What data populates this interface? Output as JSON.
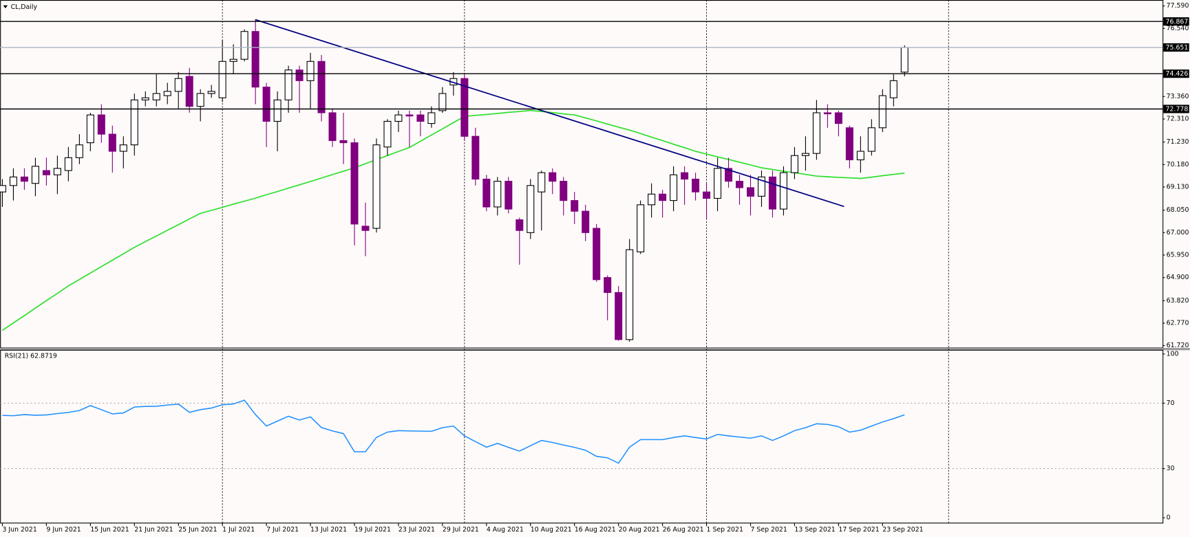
{
  "chart_data": [
    {
      "type": "candlestick",
      "title": "CL,Daily",
      "categories": [
        "3 Jun 2021",
        null,
        null,
        null,
        "9 Jun 2021",
        null,
        null,
        null,
        "15 Jun 2021",
        null,
        null,
        null,
        "21 Jun 2021",
        null,
        null,
        null,
        "25 Jun 2021",
        null,
        null,
        null,
        "1 Jul 2021",
        null,
        null,
        null,
        "7 Jul 2021",
        null,
        null,
        null,
        "13 Jul 2021",
        null,
        null,
        null,
        "19 Jul 2021",
        null,
        null,
        null,
        "23 Jul 2021",
        null,
        null,
        null,
        "29 Jul 2021",
        null,
        null,
        null,
        "4 Aug 2021",
        null,
        null,
        null,
        "10 Aug 2021",
        null,
        null,
        null,
        "16 Aug 2021",
        null,
        null,
        null,
        "20 Aug 2021",
        null,
        null,
        null,
        "26 Aug 2021",
        null,
        null,
        null,
        "1 Sep 2021",
        null,
        null,
        null,
        "7 Sep 2021",
        null,
        null,
        null,
        "13 Sep 2021",
        null,
        null,
        null,
        "17 Sep 2021",
        null,
        null,
        null,
        "23 Sep 2021",
        null,
        null
      ],
      "open": [
        68.9,
        69.2,
        69.6,
        69.3,
        69.9,
        69.7,
        69.9,
        70.5,
        71.2,
        72.5,
        71.6,
        70.8,
        71.1,
        73.2,
        73.2,
        73.4,
        73.6,
        74.3,
        72.9,
        73.5,
        73.3,
        75.0,
        75.1,
        76.4,
        73.8,
        72.2,
        73.2,
        74.6,
        74.1,
        75.0,
        72.6,
        71.3,
        71.2,
        67.3,
        67.2,
        71.0,
        72.2,
        72.5,
        72.5,
        72.1,
        72.7,
        73.9,
        74.2,
        71.5,
        69.5,
        68.2,
        69.4,
        67.6,
        67.0,
        68.9,
        69.8,
        69.4,
        68.5,
        68.0,
        67.2,
        64.9,
        64.2,
        62.0,
        66.1,
        68.3,
        68.8,
        68.5,
        69.8,
        69.5,
        68.9,
        68.6,
        70.0,
        69.4,
        69.1,
        68.7,
        69.6,
        68.1,
        69.8,
        70.6,
        70.7,
        72.6,
        72.6,
        71.9,
        70.4,
        70.8,
        71.9,
        73.3,
        74.5
      ],
      "high": [
        69.5,
        70.0,
        70.0,
        70.5,
        70.5,
        70.6,
        71.0,
        71.6,
        72.6,
        73.0,
        72.0,
        71.5,
        73.5,
        73.6,
        74.4,
        74.0,
        74.5,
        74.7,
        73.7,
        73.9,
        76.0,
        75.8,
        76.5,
        76.97,
        74.0,
        73.6,
        74.8,
        74.8,
        75.4,
        75.3,
        72.8,
        72.6,
        71.4,
        68.4,
        71.4,
        72.3,
        72.7,
        72.7,
        72.7,
        72.9,
        73.8,
        74.5,
        74.4,
        71.9,
        69.7,
        69.6,
        69.6,
        67.7,
        69.5,
        69.9,
        70.0,
        69.6,
        68.9,
        68.3,
        67.4,
        65.0,
        64.5,
        66.7,
        68.5,
        69.3,
        69.0,
        70.1,
        70.1,
        69.8,
        69.3,
        70.5,
        70.5,
        69.7,
        69.7,
        69.9,
        69.9,
        70.1,
        71.0,
        71.5,
        73.2,
        73.0,
        72.7,
        72.0,
        71.5,
        72.3,
        73.7,
        74.4,
        75.75
      ],
      "low": [
        68.2,
        68.5,
        69.0,
        68.7,
        69.2,
        68.8,
        69.4,
        70.2,
        70.8,
        71.2,
        69.8,
        70.0,
        70.6,
        72.9,
        72.9,
        73.0,
        72.8,
        72.6,
        72.2,
        73.3,
        73.1,
        74.4,
        75.0,
        73.0,
        71.0,
        70.8,
        72.6,
        72.6,
        72.8,
        72.2,
        71.0,
        70.2,
        66.4,
        65.9,
        67.0,
        70.6,
        71.7,
        71.0,
        71.5,
        71.9,
        72.6,
        73.4,
        71.3,
        69.2,
        68.0,
        67.8,
        67.9,
        65.5,
        66.7,
        67.1,
        68.8,
        67.8,
        67.4,
        66.6,
        64.7,
        62.9,
        61.95,
        61.9,
        66.0,
        67.7,
        67.7,
        68.0,
        68.3,
        68.5,
        67.6,
        68.0,
        69.1,
        68.3,
        67.8,
        68.2,
        67.7,
        67.8,
        69.5,
        69.9,
        70.4,
        71.9,
        71.5,
        70.0,
        69.8,
        70.6,
        71.7,
        72.9,
        74.3
      ],
      "close": [
        69.2,
        69.6,
        69.4,
        70.1,
        69.7,
        70.0,
        70.5,
        71.1,
        72.5,
        71.6,
        70.8,
        71.1,
        73.2,
        73.3,
        73.5,
        73.6,
        74.2,
        72.9,
        73.5,
        73.6,
        75.0,
        75.1,
        76.4,
        73.8,
        72.2,
        73.2,
        74.6,
        74.1,
        75.0,
        72.6,
        71.3,
        71.2,
        67.4,
        67.1,
        71.1,
        72.2,
        72.5,
        72.45,
        72.2,
        72.6,
        73.5,
        74.2,
        71.5,
        69.5,
        68.2,
        69.4,
        68.1,
        67.1,
        69.2,
        69.8,
        69.4,
        68.5,
        68.0,
        67.0,
        64.8,
        64.2,
        62.0,
        66.2,
        68.3,
        68.8,
        68.5,
        69.7,
        69.5,
        68.9,
        68.6,
        70.0,
        69.4,
        69.1,
        68.7,
        69.6,
        68.1,
        69.8,
        70.6,
        70.7,
        72.6,
        72.55,
        72.1,
        70.4,
        70.8,
        71.9,
        73.4,
        74.1,
        75.651
      ],
      "up_color": "#ffffff",
      "up_edge": "#000000",
      "down_color": "#800080",
      "ma": {
        "color": "#32e032",
        "values": [
          62.43,
          62.78,
          63.12,
          63.47,
          63.82,
          64.16,
          64.51,
          64.81,
          65.11,
          65.41,
          65.71,
          66.01,
          66.31,
          66.58,
          66.84,
          67.11,
          67.37,
          67.64,
          67.9,
          68.04,
          68.18,
          68.33,
          68.47,
          68.61,
          68.77,
          68.92,
          69.08,
          69.23,
          69.39,
          69.55,
          69.71,
          69.87,
          70.03,
          70.22,
          70.41,
          70.6,
          70.79,
          70.98,
          71.27,
          71.56,
          71.85,
          72.14,
          72.43,
          72.48,
          72.52,
          72.57,
          72.62,
          72.66,
          72.71,
          72.66,
          72.61,
          72.55,
          72.5,
          72.36,
          72.22,
          72.07,
          71.93,
          71.79,
          71.63,
          71.46,
          71.3,
          71.13,
          70.97,
          70.8,
          70.67,
          70.54,
          70.42,
          70.29,
          70.16,
          70.03,
          69.95,
          69.87,
          69.8,
          69.72,
          69.64,
          69.61,
          69.58,
          69.56,
          69.53,
          69.59,
          69.66,
          69.72,
          69.78
        ]
      },
      "trendline": {
        "x": [
          23,
          76.5
        ],
        "values": [
          76.95,
          68.22
        ],
        "color": "#000080"
      },
      "levels": [
        {
          "value": 76.867,
          "color": "#000000"
        },
        {
          "value": 75.651,
          "color": "#a8b4c4"
        },
        {
          "value": 74.426,
          "color": "#000000"
        },
        {
          "value": 72.778,
          "color": "#000000"
        }
      ],
      "separators": [
        20,
        42,
        64,
        86
      ],
      "xlim": [
        -0.207,
        105.45
      ],
      "ylim": [
        61.61,
        77.87
      ],
      "yticks": [
        {
          "value": 77.59,
          "label": "77.590"
        },
        {
          "value": 76.54,
          "label": "76.540"
        },
        {
          "value": 73.36,
          "label": "73.360"
        },
        {
          "value": 72.31,
          "label": "72.310"
        },
        {
          "value": 71.23,
          "label": "71.230"
        },
        {
          "value": 70.18,
          "label": "70.180"
        },
        {
          "value": 69.13,
          "label": "69.130"
        },
        {
          "value": 68.05,
          "label": "68.050"
        },
        {
          "value": 67.0,
          "label": "67.000"
        },
        {
          "value": 65.95,
          "label": "65.950"
        },
        {
          "value": 64.9,
          "label": "64.900"
        },
        {
          "value": 63.82,
          "label": "63.820"
        },
        {
          "value": 62.77,
          "label": "62.770"
        },
        {
          "value": 61.72,
          "label": "61.720"
        }
      ]
    },
    {
      "type": "line",
      "title": "RSI(21) 62.8719",
      "color": "#1e90ff",
      "values": [
        62.5,
        62.3,
        63.0,
        62.6,
        62.8,
        63.6,
        64.3,
        65.5,
        68.5,
        66.0,
        63.4,
        64.0,
        67.6,
        68.0,
        68.1,
        68.8,
        69.4,
        64.4,
        66.0,
        67.0,
        69.0,
        69.5,
        71.8,
        63.0,
        56.0,
        59.0,
        62.0,
        59.7,
        61.6,
        55.1,
        53.0,
        51.4,
        40.3,
        40.3,
        49.1,
        52.3,
        53.2,
        53.0,
        52.9,
        52.8,
        55.0,
        56.0,
        50.0,
        46.5,
        43.1,
        45.4,
        43.0,
        40.7,
        44.0,
        47.2,
        46.0,
        44.4,
        43.0,
        41.2,
        37.5,
        36.6,
        33.3,
        43.1,
        47.7,
        47.7,
        47.7,
        49.0,
        50.0,
        49.0,
        48.1,
        50.9,
        50.0,
        49.3,
        48.6,
        50.0,
        47.2,
        50.0,
        53.2,
        55.0,
        57.4,
        57.0,
        55.6,
        52.3,
        53.5,
        56.0,
        58.5,
        60.5,
        62.8719
      ],
      "levels": [
        30,
        70
      ],
      "xlim": [
        -0.207,
        105.45
      ],
      "ylim": [
        -3.24,
        102.31
      ],
      "yticks": [
        0,
        30,
        70,
        100
      ]
    }
  ]
}
